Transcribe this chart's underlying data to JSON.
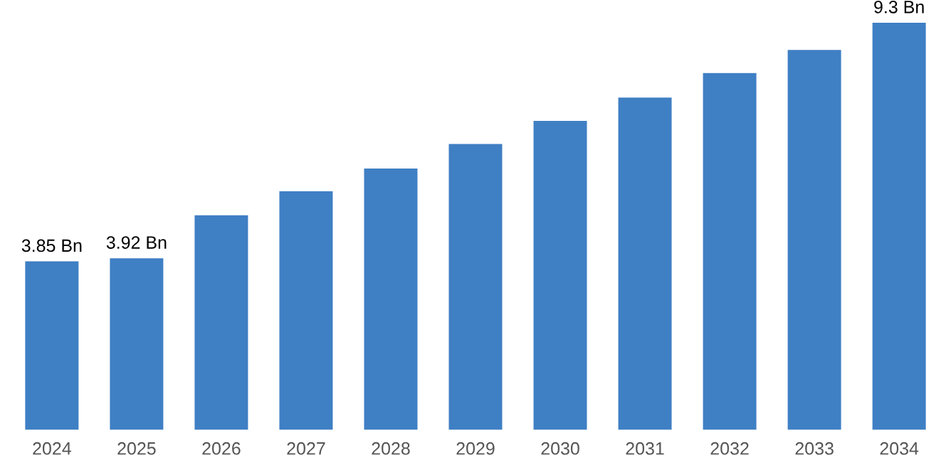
{
  "chart_data": {
    "type": "bar",
    "categories": [
      "2024",
      "2025",
      "2026",
      "2027",
      "2028",
      "2029",
      "2030",
      "2031",
      "2032",
      "2033",
      "2034"
    ],
    "values": [
      3.85,
      3.92,
      4.9,
      5.45,
      5.97,
      6.53,
      7.06,
      7.59,
      8.15,
      8.68,
      9.3
    ],
    "value_labels": [
      "3.85 Bn",
      "3.92 Bn",
      null,
      null,
      null,
      null,
      null,
      null,
      null,
      null,
      "9.3 Bn"
    ],
    "color": "#3f7fc4",
    "grid": false,
    "legend": false
  }
}
